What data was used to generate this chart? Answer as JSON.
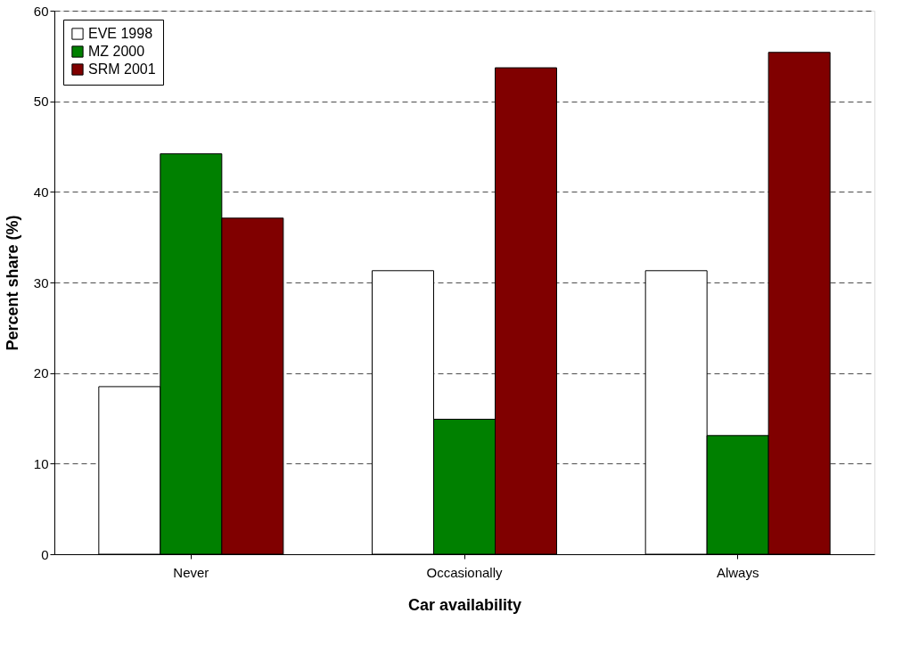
{
  "chart_data": {
    "type": "bar",
    "xlabel": "Car availability",
    "ylabel": "Percent share (%)",
    "categories": [
      "Never",
      "Occasionally",
      "Always"
    ],
    "series": [
      {
        "name": "EVE 1998",
        "color": "#ffffff",
        "values": [
          18.5,
          31.3,
          31.3
        ]
      },
      {
        "name": "MZ 2000",
        "color": "#008000",
        "values": [
          44.2,
          14.9,
          13.1
        ]
      },
      {
        "name": "SRM 2001",
        "color": "#800000",
        "values": [
          37.1,
          53.7,
          55.4
        ]
      }
    ],
    "ylim": [
      0,
      60
    ],
    "yticks": [
      0,
      10,
      20,
      30,
      40,
      50,
      60
    ],
    "grid": "y",
    "legend": "top left"
  }
}
